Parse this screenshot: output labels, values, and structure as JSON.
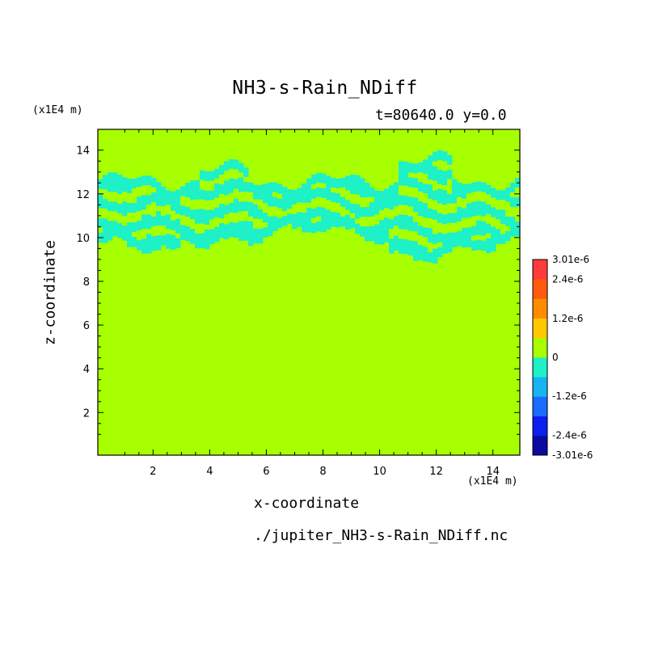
{
  "header": {
    "title": "NH3-s-Rain_NDiff",
    "subtitle": "t=80640.0 y=0.0",
    "yunit": "(x1E4 m)",
    "xunit": "(x1E4 m)"
  },
  "footer": {
    "filename": "./jupiter_NH3-s-Rain_NDiff.nc"
  },
  "chart_data": {
    "type": "heatmap",
    "title": "NH3-s-Rain_NDiff",
    "subtitle": "t=80640.0 y=0.0",
    "xlabel": "x-coordinate",
    "ylabel": "z-coordinate",
    "xunit": "(x1E4 m)",
    "yunit": "(x1E4 m)",
    "xlim": [
      0.05,
      14.95
    ],
    "ylim": [
      0.05,
      14.95
    ],
    "xticks": [
      2,
      4,
      6,
      8,
      10,
      12,
      14
    ],
    "yticks": [
      2,
      4,
      6,
      8,
      10,
      12,
      14
    ],
    "background_level": "0",
    "background_color": "#a8ff00",
    "colorbar": {
      "colors": [
        "#0a0aa0",
        "#0a1ff0",
        "#1a6cff",
        "#16b4f0",
        "#1ef0c8",
        "#a8ff00",
        "#ffc800",
        "#ff8c00",
        "#ff5a10",
        "#ff3a3a"
      ],
      "labels": [
        {
          "text": "3.01e-6",
          "value": 3.01e-06
        },
        {
          "text": "2.4e-6",
          "value": 2.4e-06
        },
        {
          "text": "1.2e-6",
          "value": 1.2e-06
        },
        {
          "text": "0",
          "value": 0
        },
        {
          "text": "-1.2e-6",
          "value": -1.2e-06
        },
        {
          "text": "-2.4e-6",
          "value": -2.4e-06
        },
        {
          "text": "-3.01e-6",
          "value": -3.01e-06
        }
      ]
    },
    "negative_band": {
      "level": "small negative (cyan)",
      "color": "#1ef0c8",
      "z_range_top": [
        12.6,
        14.0
      ],
      "z_range_bottom": [
        9.5,
        10.6
      ],
      "x_top_bump": [
        10.5,
        12.5
      ]
    }
  }
}
